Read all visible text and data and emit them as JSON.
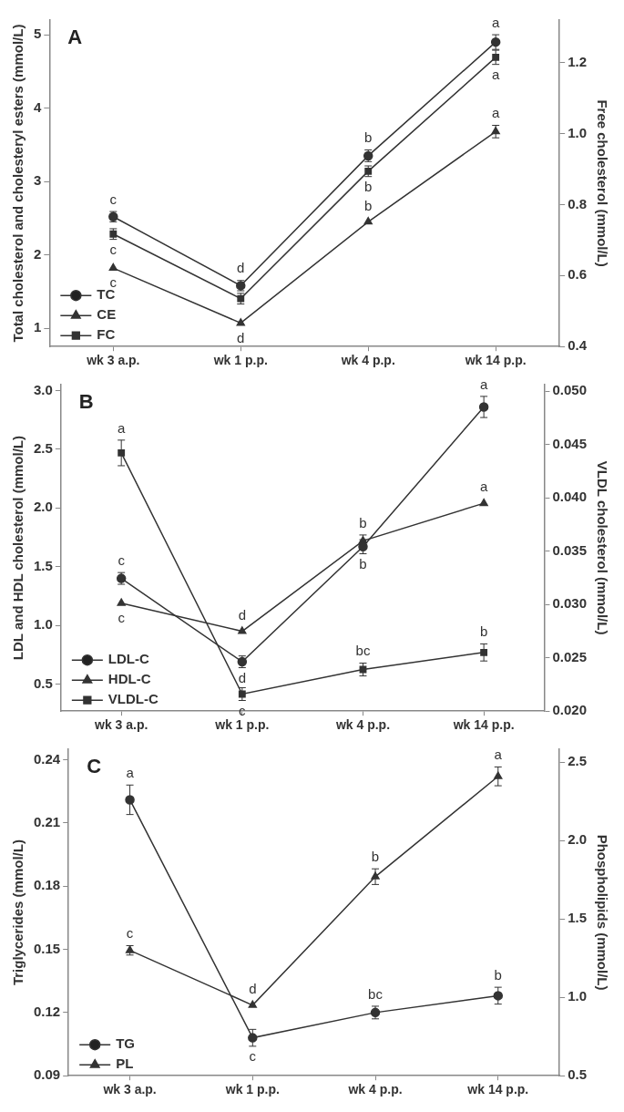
{
  "chart_data": [
    {
      "type": "line",
      "title": "A",
      "ylabel": "Total cholesterol and cholesteryl esters (mmol/L)",
      "y2label": "Free cholesterol (mmol/L)",
      "categories": [
        "wk 3 a.p.",
        "wk 1 p.p.",
        "wk 4 p.p.",
        "wk 14 p.p."
      ],
      "series": [
        {
          "name": "TC",
          "color": "#333333",
          "marker": "circle",
          "values": [
            2.52,
            1.58,
            3.35,
            4.9
          ],
          "errors": [
            0.07,
            0.07,
            0.08,
            0.1
          ],
          "value_labels": [
            "c",
            "d",
            "b",
            "a"
          ]
        },
        {
          "name": "CE",
          "color": "#333333",
          "marker": "triangle",
          "values": [
            1.82,
            1.07,
            2.45,
            3.68
          ],
          "errors": [
            null,
            null,
            null,
            0.085
          ],
          "value_labels": [
            "c",
            "d",
            "b",
            "a"
          ]
        },
        {
          "name": "FC",
          "color": "#333333",
          "marker": "square",
          "axis": "y2",
          "values": [
            0.717,
            0.535,
            0.894,
            1.215
          ],
          "errors": [
            0.015,
            0.015,
            0.015,
            0.02
          ],
          "value_labels": [
            "c",
            null,
            "b",
            "a"
          ]
        }
      ],
      "ylim": [
        0.75,
        5.2
      ],
      "yticks": [
        1,
        2,
        3,
        4,
        5
      ],
      "y2lim": [
        0.4,
        1.32
      ],
      "y2ticks": [
        0.4,
        0.6,
        0.8,
        {
          "value": 1.0,
          "label": "1.0"
        },
        1.2
      ],
      "grid": false,
      "legend": "bottom left"
    },
    {
      "type": "line",
      "title": "B",
      "ylabel": "LDL and HDL cholesterol (mmol/L)",
      "y2label": "VLDL cholesterol (mmol/L)",
      "categories": [
        "wk 3 a.p.",
        "wk 1 p.p.",
        "wk 4 p.p.",
        "wk 14 p.p."
      ],
      "series": [
        {
          "name": "LDL-C",
          "color": "#333333",
          "marker": "circle",
          "values": [
            1.4,
            0.69,
            1.67,
            2.86
          ],
          "errors": [
            0.05,
            0.05,
            0.06,
            0.09
          ],
          "value_labels": [
            "c",
            "d",
            "b",
            "a"
          ]
        },
        {
          "name": "HDL-C",
          "color": "#333333",
          "marker": "triangle",
          "values": [
            1.19,
            0.95,
            1.72,
            2.04
          ],
          "errors": [
            null,
            null,
            0.05,
            null
          ],
          "value_labels": [
            "c",
            "d",
            "b",
            "a"
          ]
        },
        {
          "name": "VLDL-C",
          "color": "#333333",
          "marker": "square",
          "axis": "y2",
          "values": [
            0.0442,
            0.0216,
            0.0239,
            0.0255
          ],
          "errors": [
            0.0012,
            0.0006,
            0.0006,
            0.0008
          ],
          "value_labels": [
            "a",
            "c",
            "bc",
            "b"
          ]
        }
      ],
      "ylim": [
        0.27,
        3.05
      ],
      "yticks": [
        0.5,
        {
          "value": 1.0,
          "label": "1.0"
        },
        1.5,
        {
          "value": 2.0,
          "label": "2.0"
        },
        2.5,
        {
          "value": 3.0,
          "label": "3.0"
        }
      ],
      "y2lim": [
        0.02,
        0.0506
      ],
      "y2ticks": [
        {
          "value": 0.02,
          "label": "0.020"
        },
        0.025,
        {
          "value": 0.03,
          "label": "0.030"
        },
        0.035,
        {
          "value": 0.04,
          "label": "0.040"
        },
        0.045,
        {
          "value": 0.05,
          "label": "0.050"
        }
      ],
      "grid": false,
      "legend": "bottom left"
    },
    {
      "type": "line",
      "title": "C",
      "ylabel": "Triglycerides (mmol/L)",
      "y2label": "Phospholipids (mmol/L)",
      "categories": [
        "wk 3 a.p.",
        "wk 1 p.p.",
        "wk 4 p.p.",
        "wk 14 p.p."
      ],
      "series": [
        {
          "name": "TG",
          "color": "#333333",
          "marker": "circle",
          "values": [
            0.221,
            0.108,
            0.12,
            0.128
          ],
          "errors": [
            0.007,
            0.004,
            0.003,
            0.004
          ],
          "value_labels": [
            "a",
            "c",
            "bc",
            "b"
          ]
        },
        {
          "name": "PL",
          "color": "#333333",
          "marker": "triangle",
          "axis": "y2",
          "values": [
            1.3,
            0.95,
            1.77,
            2.41
          ],
          "errors": [
            0.03,
            null,
            0.05,
            0.06
          ],
          "value_labels": [
            "c",
            "d",
            "b",
            "a"
          ]
        }
      ],
      "ylim": [
        0.09,
        0.245
      ],
      "yticks": [
        0.09,
        0.12,
        0.15,
        0.18,
        0.21,
        0.24
      ],
      "y2lim": [
        0.5,
        2.583
      ],
      "y2ticks": [
        0.5,
        {
          "value": 1.0,
          "label": "1.0"
        },
        1.5,
        {
          "value": 2.0,
          "label": "2.0"
        },
        2.5
      ],
      "grid": false,
      "legend": "bottom left"
    }
  ]
}
